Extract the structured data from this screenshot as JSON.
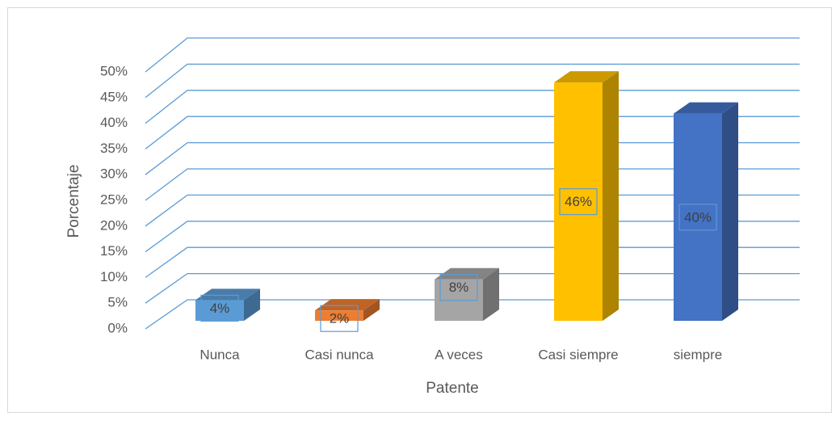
{
  "chart_data": {
    "type": "bar3d",
    "x_label": "Patente",
    "y_label": "Porcentaje",
    "categories": [
      "Nunca",
      "Casi nunca",
      "A veces",
      "Casi siempre",
      "siempre"
    ],
    "values": [
      4,
      2,
      8,
      46,
      40
    ],
    "value_labels": [
      "4%",
      "2%",
      "8%",
      "46%",
      "40%"
    ],
    "colors": [
      "#5b9bd5",
      "#ed7d31",
      "#a5a5a5",
      "#ffc000",
      "#4472c4"
    ],
    "ylim": [
      0,
      50
    ],
    "yticks": [
      {
        "value": 0,
        "label": "0%"
      },
      {
        "value": 5,
        "label": "5%"
      },
      {
        "value": 10,
        "label": "10%"
      },
      {
        "value": 15,
        "label": "15%"
      },
      {
        "value": 20,
        "label": "20%"
      },
      {
        "value": 25,
        "label": "25%"
      },
      {
        "value": 30,
        "label": "30%"
      },
      {
        "value": 35,
        "label": "35%"
      },
      {
        "value": 40,
        "label": "40%"
      },
      {
        "value": 45,
        "label": "45%"
      },
      {
        "value": 50,
        "label": "50%"
      }
    ],
    "grid": true
  }
}
